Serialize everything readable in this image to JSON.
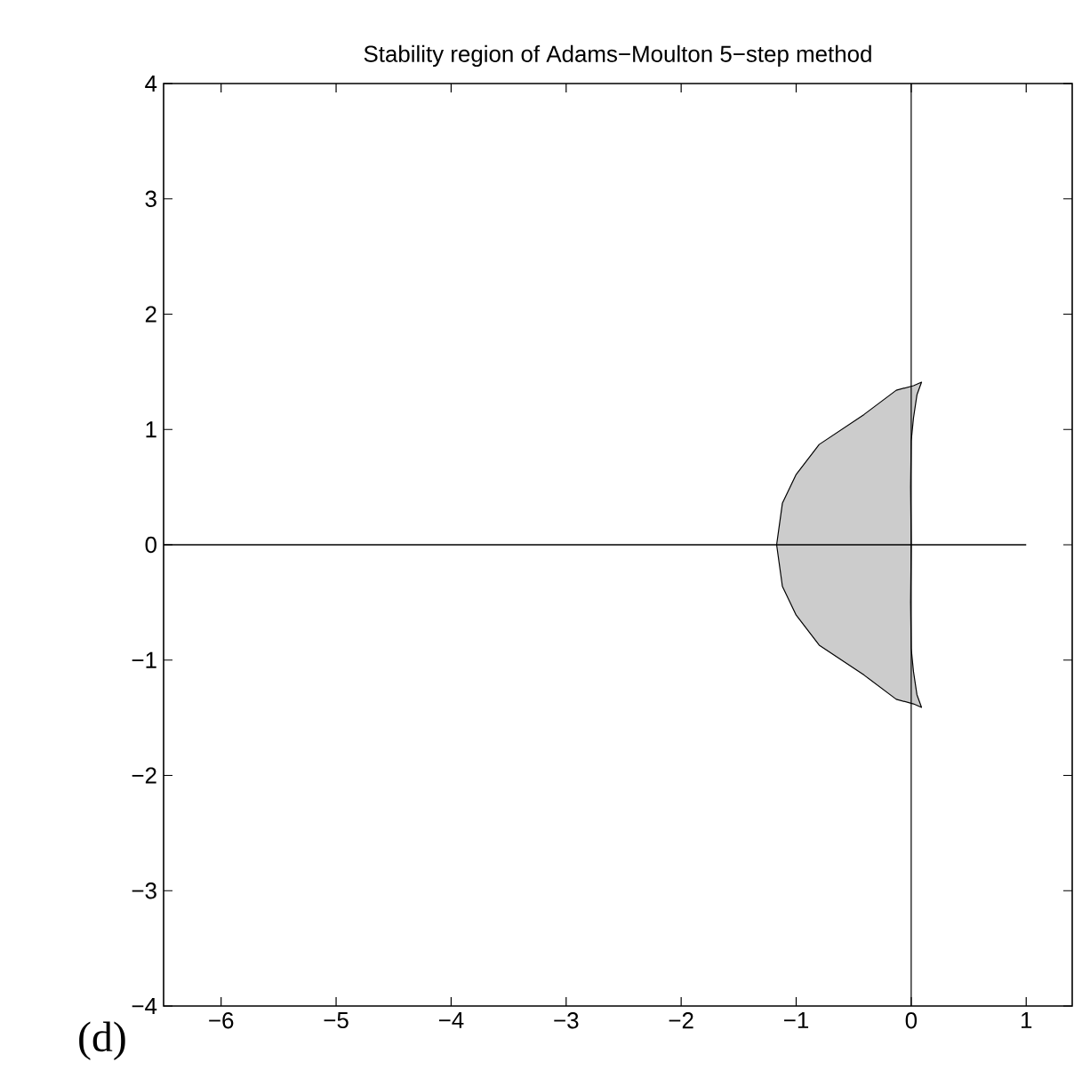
{
  "chart_data": {
    "type": "area",
    "title": "Stability region of Adams−Moulton 5−step method",
    "annotations": [
      "(d)"
    ],
    "series": [
      {
        "color": "#cccccc",
        "x": [
          0,
          -0.005,
          0.0,
          0.02,
          0.05,
          0.09,
          0.02,
          -0.13,
          -0.41,
          -0.8,
          -1.0,
          -1.12,
          -1.17,
          -1.12,
          -1.0,
          -0.8,
          -0.41,
          -0.13,
          0.02,
          0.09,
          0.05,
          0.02,
          0.0,
          -0.005,
          0
        ],
        "values": [
          0,
          0.5,
          0.9,
          1.1,
          1.3,
          1.41,
          1.38,
          1.34,
          1.13,
          0.87,
          0.61,
          0.36,
          0,
          -0.36,
          -0.61,
          -0.87,
          -1.13,
          -1.34,
          -1.38,
          -1.41,
          -1.3,
          -1.1,
          -0.9,
          -0.5,
          0
        ]
      },
      {
        "type": "line",
        "color": "#000000",
        "x": [
          -6.5,
          1
        ],
        "values": [
          0,
          0
        ]
      }
    ],
    "ref_lines": [
      {
        "axis": "x",
        "value": 0
      }
    ],
    "xlim": [
      -6.5,
      1.4
    ],
    "ylim": [
      -4,
      4
    ],
    "xticks": [
      {
        "value": -6,
        "label": "−6"
      },
      {
        "value": -5,
        "label": "−5"
      },
      {
        "value": -4,
        "label": "−4"
      },
      {
        "value": -3,
        "label": "−3"
      },
      {
        "value": -2,
        "label": "−2"
      },
      {
        "value": -1,
        "label": "−1"
      },
      0,
      1
    ],
    "yticks": [
      {
        "value": -4,
        "label": "−4"
      },
      {
        "value": -3,
        "label": "−3"
      },
      {
        "value": -2,
        "label": "−2"
      },
      {
        "value": -1,
        "label": "−1"
      },
      0,
      1,
      2,
      3,
      4
    ],
    "grid": false
  }
}
